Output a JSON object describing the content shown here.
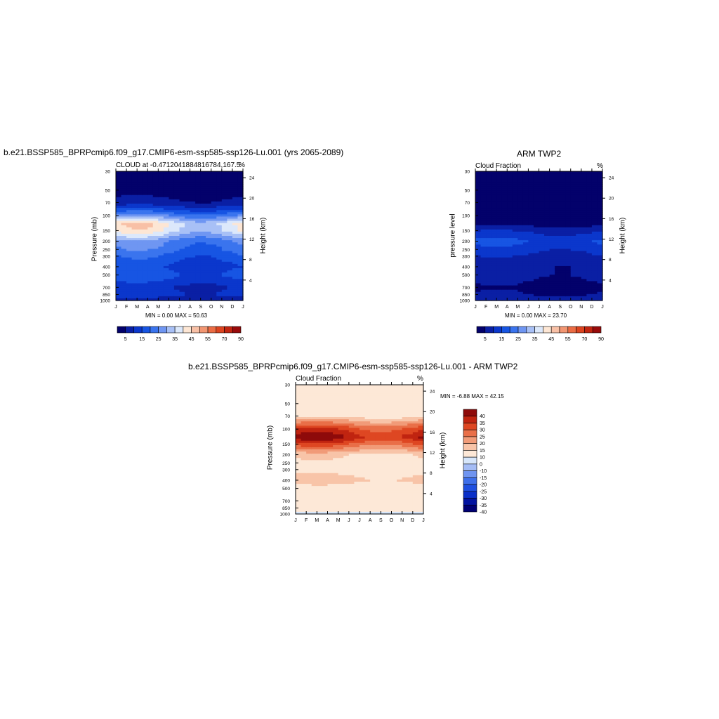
{
  "panels": [
    {
      "title": "b.e21.BSSP585_BPRPcmip6.f09_g17.CMIP6-esm-ssp585-ssp126-Lu.001 (yrs 2065-2089)",
      "subtitle_left": "CLOUD at -0.4712041884816784,167.5",
      "subtitle_right": "%",
      "ylabel_left": "Pressure (mb)",
      "ylabel_right": "Height (km)",
      "stats": "MIN =   0.00 MAX =  50.63",
      "colorbar_labels": [
        "5",
        "15",
        "25",
        "35",
        "45",
        "55",
        "70",
        "90"
      ]
    },
    {
      "title": "ARM TWP2",
      "subtitle_left": "Cloud Fraction",
      "subtitle_right": "%",
      "ylabel_left": "pressure level",
      "ylabel_right": "Height (km)",
      "stats": "MIN =   0.00 MAX =  23.70",
      "colorbar_labels": [
        "5",
        "15",
        "25",
        "35",
        "45",
        "55",
        "70",
        "90"
      ]
    },
    {
      "title": "b.e21.BSSP585_BPRPcmip6.f09_g17.CMIP6-esm-ssp585-ssp126-Lu.001 - ARM TWP2",
      "subtitle_left": "Cloud Fraction",
      "subtitle_right": "%",
      "ylabel_left": "Pressure (mb)",
      "ylabel_right": "Height (km)",
      "stats": "MIN =  -6.88 MAX =  42.15",
      "colorbar_labels": [
        "40",
        "35",
        "30",
        "25",
        "20",
        "15",
        "10",
        "0",
        "-10",
        "-15",
        "-20",
        "-25",
        "-30",
        "-35",
        "-40"
      ]
    }
  ],
  "chart_data": [
    {
      "type": "heatmap",
      "title": "b.e21.BSSP585_BPRPcmip6.f09_g17.CMIP6-esm-ssp585-ssp126-Lu.001 (yrs 2065-2089)",
      "x_ticks": [
        "J",
        "F",
        "M",
        "A",
        "M",
        "J",
        "J",
        "A",
        "S",
        "O",
        "N",
        "D",
        "J"
      ],
      "pressure_ticks": [
        30,
        50,
        70,
        100,
        150,
        200,
        250,
        300,
        400,
        500,
        700,
        850,
        1000
      ],
      "height_ticks": [
        4,
        8,
        12,
        16,
        20,
        24
      ],
      "ylabel": "Pressure (mb)",
      "ylabel_right": "Height (km)",
      "min": 0.0,
      "max": 50.63,
      "levels": [
        5,
        10,
        15,
        20,
        25,
        30,
        35,
        40,
        45,
        50,
        55,
        60,
        70,
        80,
        90
      ],
      "profile": [
        [
          30,
          2
        ],
        [
          50,
          3
        ],
        [
          70,
          6
        ],
        [
          85,
          15
        ],
        [
          100,
          25
        ],
        [
          125,
          40
        ],
        [
          150,
          38
        ],
        [
          200,
          25
        ],
        [
          250,
          22
        ],
        [
          300,
          18
        ],
        [
          400,
          14
        ],
        [
          500,
          17
        ],
        [
          700,
          10
        ],
        [
          850,
          12
        ],
        [
          1000,
          6
        ]
      ]
    },
    {
      "type": "heatmap",
      "title": "ARM TWP2",
      "x_ticks": [
        "J",
        "F",
        "M",
        "A",
        "M",
        "J",
        "J",
        "A",
        "S",
        "O",
        "N",
        "D",
        "J"
      ],
      "pressure_ticks": [
        30,
        50,
        70,
        100,
        150,
        200,
        250,
        300,
        400,
        500,
        700,
        850,
        1000
      ],
      "height_ticks": [
        4,
        8,
        12,
        16,
        20,
        24
      ],
      "ylabel": "pressure level",
      "ylabel_right": "Height (km)",
      "min": 0.0,
      "max": 23.7,
      "levels": [
        5,
        10,
        15,
        20,
        25,
        30,
        35,
        40,
        45,
        50,
        55,
        60,
        70,
        80,
        90
      ],
      "profile": [
        [
          30,
          1
        ],
        [
          50,
          1
        ],
        [
          70,
          1
        ],
        [
          100,
          2
        ],
        [
          125,
          3
        ],
        [
          150,
          9
        ],
        [
          200,
          15
        ],
        [
          250,
          12
        ],
        [
          300,
          9
        ],
        [
          400,
          6
        ],
        [
          500,
          6
        ],
        [
          700,
          4
        ],
        [
          850,
          5
        ],
        [
          1000,
          8
        ]
      ]
    },
    {
      "type": "heatmap",
      "title": "b.e21.BSSP585_BPRPcmip6.f09_g17.CMIP6-esm-ssp585-ssp126-Lu.001 - ARM TWP2",
      "x_ticks": [
        "J",
        "F",
        "M",
        "A",
        "M",
        "J",
        "J",
        "A",
        "S",
        "O",
        "N",
        "D",
        "J"
      ],
      "pressure_ticks": [
        30,
        50,
        70,
        100,
        150,
        200,
        250,
        300,
        400,
        500,
        700,
        850,
        1000
      ],
      "height_ticks": [
        4,
        8,
        12,
        16,
        20,
        24
      ],
      "ylabel": "Pressure (mb)",
      "ylabel_right": "Height (km)",
      "min": -6.88,
      "max": 42.15,
      "levels": [
        -40,
        -35,
        -30,
        -25,
        -20,
        -15,
        -10,
        0,
        10,
        15,
        20,
        25,
        30,
        35,
        40
      ],
      "profile": [
        [
          30,
          0
        ],
        [
          50,
          3
        ],
        [
          70,
          8
        ],
        [
          100,
          28
        ],
        [
          125,
          34
        ],
        [
          150,
          25
        ],
        [
          200,
          10
        ],
        [
          250,
          8
        ],
        [
          300,
          7
        ],
        [
          400,
          12
        ],
        [
          500,
          6
        ],
        [
          700,
          3
        ],
        [
          850,
          2
        ],
        [
          1000,
          -2
        ]
      ]
    }
  ],
  "colors": {
    "seq": [
      "#03016b",
      "#0a1fa4",
      "#0b37cc",
      "#1755e3",
      "#3a74ee",
      "#6f96f2",
      "#a8c0f6",
      "#dce8fb",
      "#fde6d4",
      "#f8c0a6",
      "#f29672",
      "#eb6c44",
      "#dc4420",
      "#c12510",
      "#980b0b"
    ],
    "div": [
      "#000074",
      "#0213a0",
      "#0a2fc8",
      "#1e4fe0",
      "#3e6fea",
      "#6f94f0",
      "#a4bcf5",
      "#d6e6fb",
      "#fde8d7",
      "#f8c4a8",
      "#f19b78",
      "#e96f48",
      "#de4722",
      "#c02410",
      "#8e0a0a"
    ]
  }
}
